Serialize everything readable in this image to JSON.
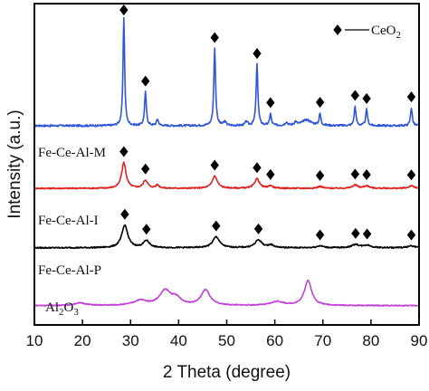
{
  "chart_data": {
    "type": "line",
    "title": "",
    "xlabel": "2 Theta (degree)",
    "ylabel": "Intensity (a.u.)",
    "xlim": [
      10,
      90
    ],
    "xticks": [
      10,
      20,
      30,
      40,
      50,
      60,
      70,
      80,
      90
    ],
    "xtick_labels": [
      "10",
      "20",
      "30",
      "40",
      "50",
      "60",
      "70",
      "80",
      "90"
    ],
    "y_ticks_shown": false,
    "legend": {
      "marker": "diamond",
      "label": "CeO",
      "label_subscript": "2",
      "placement": "top-right"
    },
    "marker_color": "#000000",
    "series": [
      {
        "name": "Fe-Ce-Al-M",
        "color": "#2f55d8",
        "baseline": 0.62,
        "noise": 0.006,
        "peaks": [
          {
            "x": 28.6,
            "h": 0.338,
            "w": 0.2
          },
          {
            "x": 33.1,
            "h": 0.104,
            "w": 0.22
          },
          {
            "x": 35.6,
            "h": 0.02,
            "w": 0.25
          },
          {
            "x": 47.5,
            "h": 0.24,
            "w": 0.22
          },
          {
            "x": 49.6,
            "h": 0.012,
            "w": 0.3
          },
          {
            "x": 54.1,
            "h": 0.012,
            "w": 0.3
          },
          {
            "x": 56.3,
            "h": 0.19,
            "w": 0.22
          },
          {
            "x": 59.1,
            "h": 0.036,
            "w": 0.22
          },
          {
            "x": 62.4,
            "h": 0.01,
            "w": 0.3
          },
          {
            "x": 64.3,
            "h": 0.01,
            "w": 0.3
          },
          {
            "x": 66.6,
            "h": 0.018,
            "w": 1.2
          },
          {
            "x": 69.4,
            "h": 0.036,
            "w": 0.22
          },
          {
            "x": 76.7,
            "h": 0.06,
            "w": 0.22
          },
          {
            "x": 79.1,
            "h": 0.05,
            "w": 0.22
          },
          {
            "x": 88.4,
            "h": 0.056,
            "w": 0.22
          }
        ],
        "markers_x": [
          28.6,
          33.1,
          47.5,
          56.3,
          59.1,
          69.4,
          76.7,
          79.1,
          88.4
        ]
      },
      {
        "name": "Fe-Ce-Al-I",
        "color": "#e02121",
        "baseline": 0.425,
        "noise": 0.004,
        "peaks": [
          {
            "x": 28.6,
            "h": 0.08,
            "w": 0.55
          },
          {
            "x": 33.1,
            "h": 0.025,
            "w": 0.55
          },
          {
            "x": 35.6,
            "h": 0.01,
            "w": 0.45
          },
          {
            "x": 47.5,
            "h": 0.038,
            "w": 0.65
          },
          {
            "x": 56.3,
            "h": 0.03,
            "w": 0.6
          },
          {
            "x": 59.1,
            "h": 0.008,
            "w": 0.55
          },
          {
            "x": 69.4,
            "h": 0.006,
            "w": 0.6
          },
          {
            "x": 76.7,
            "h": 0.01,
            "w": 0.65
          },
          {
            "x": 79.1,
            "h": 0.008,
            "w": 0.65
          },
          {
            "x": 88.4,
            "h": 0.008,
            "w": 0.65
          }
        ],
        "markers_x": [
          28.6,
          33.1,
          47.5,
          56.3,
          59.1,
          69.4,
          76.7,
          79.1,
          88.4
        ]
      },
      {
        "name": "Fe-Ce-Al-P",
        "color": "#000000",
        "baseline": 0.24,
        "noise": 0.004,
        "peaks": [
          {
            "x": 28.8,
            "h": 0.07,
            "w": 0.75
          },
          {
            "x": 33.3,
            "h": 0.022,
            "w": 0.75
          },
          {
            "x": 47.8,
            "h": 0.034,
            "w": 0.85
          },
          {
            "x": 56.6,
            "h": 0.024,
            "w": 0.85
          },
          {
            "x": 59.2,
            "h": 0.008,
            "w": 0.75
          },
          {
            "x": 69.4,
            "h": 0.006,
            "w": 0.8
          },
          {
            "x": 76.8,
            "h": 0.01,
            "w": 0.9
          },
          {
            "x": 79.2,
            "h": 0.008,
            "w": 0.9
          },
          {
            "x": 88.4,
            "h": 0.006,
            "w": 0.9
          }
        ],
        "markers_x": [
          28.8,
          33.3,
          47.8,
          56.6,
          69.4,
          76.8,
          79.2,
          88.4
        ]
      },
      {
        "name": "Al2O3",
        "color": "#c040d8",
        "baseline": 0.06,
        "noise": 0.003,
        "peaks": [
          {
            "x": 19.5,
            "h": 0.008,
            "w": 1.5
          },
          {
            "x": 32.0,
            "h": 0.015,
            "w": 1.6
          },
          {
            "x": 37.2,
            "h": 0.045,
            "w": 1.4
          },
          {
            "x": 39.5,
            "h": 0.02,
            "w": 1.2
          },
          {
            "x": 45.6,
            "h": 0.048,
            "w": 1.1
          },
          {
            "x": 60.5,
            "h": 0.012,
            "w": 1.5
          },
          {
            "x": 66.9,
            "h": 0.078,
            "w": 0.9
          }
        ],
        "markers_x": []
      }
    ]
  }
}
